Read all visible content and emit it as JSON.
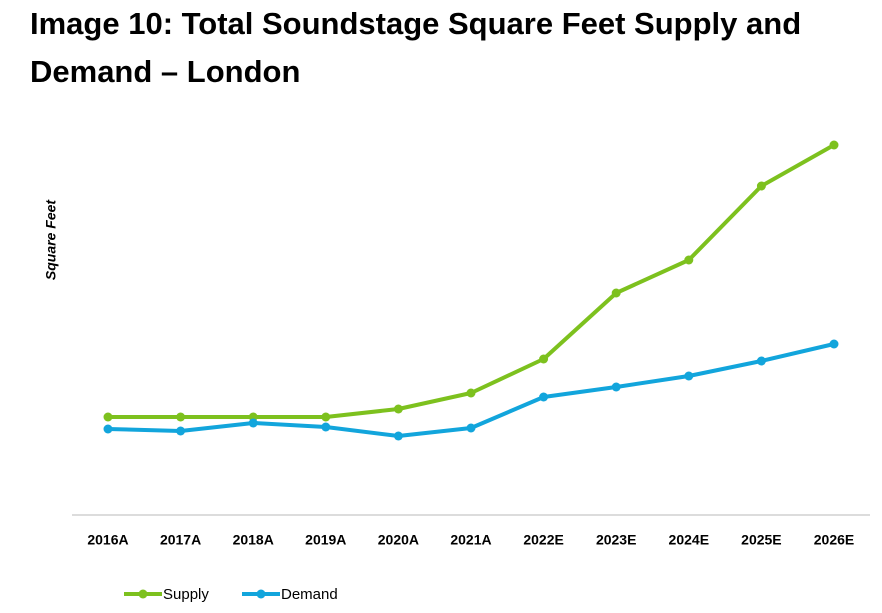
{
  "chart_data": {
    "type": "line",
    "title": "Image 10: Total Soundstage Square Feet Supply and Demand – London",
    "ylabel": "Square Feet",
    "categories": [
      "2016A",
      "2017A",
      "2018A",
      "2019A",
      "2020A",
      "2021A",
      "2022E",
      "2023E",
      "2024E",
      "2025E",
      "2026E"
    ],
    "series": [
      {
        "name": "Supply",
        "color": "#7dc11e",
        "values": [
          24.5,
          24.5,
          24.5,
          24.5,
          26.5,
          30.5,
          39,
          55.5,
          63.75,
          82.25,
          92.5
        ]
      },
      {
        "name": "Demand",
        "color": "#12a5dc",
        "values": [
          21.5,
          21,
          23,
          22,
          19.75,
          21.75,
          29.5,
          32,
          34.75,
          38.5,
          42.75
        ]
      }
    ],
    "ylim": [
      0,
      100
    ],
    "legend": "bottom-left"
  }
}
